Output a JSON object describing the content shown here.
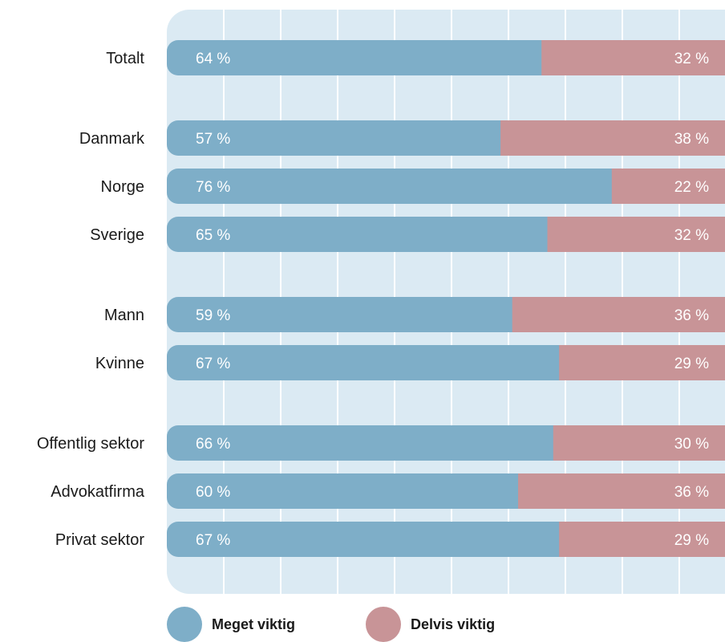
{
  "colors": {
    "panel": "#dbeaf3",
    "grid": "#ffffff",
    "meget": "#7eaec8",
    "delvis": "#c89497"
  },
  "chart_data": {
    "type": "bar",
    "orientation": "horizontal",
    "stacked": true,
    "xlim": [
      0,
      100
    ],
    "unit": "%",
    "grid": true,
    "legend_position": "bottom-left",
    "rows": [
      {
        "category": "Totalt",
        "meget": 64,
        "delvis": 32,
        "group": 0
      },
      {
        "category": "Danmark",
        "meget": 57,
        "delvis": 38,
        "group": 1
      },
      {
        "category": "Norge",
        "meget": 76,
        "delvis": 22,
        "group": 1
      },
      {
        "category": "Sverige",
        "meget": 65,
        "delvis": 32,
        "group": 1
      },
      {
        "category": "Mann",
        "meget": 59,
        "delvis": 36,
        "group": 2
      },
      {
        "category": "Kvinne",
        "meget": 67,
        "delvis": 29,
        "group": 2
      },
      {
        "category": "Offentlig sektor",
        "meget": 66,
        "delvis": 30,
        "group": 3
      },
      {
        "category": "Advokatfirma",
        "meget": 60,
        "delvis": 36,
        "group": 3
      },
      {
        "category": "Privat sektor",
        "meget": 67,
        "delvis": 29,
        "group": 3
      }
    ],
    "series": [
      {
        "name": "Meget viktig",
        "key": "meget"
      },
      {
        "name": "Delvis viktig",
        "key": "delvis"
      }
    ]
  }
}
